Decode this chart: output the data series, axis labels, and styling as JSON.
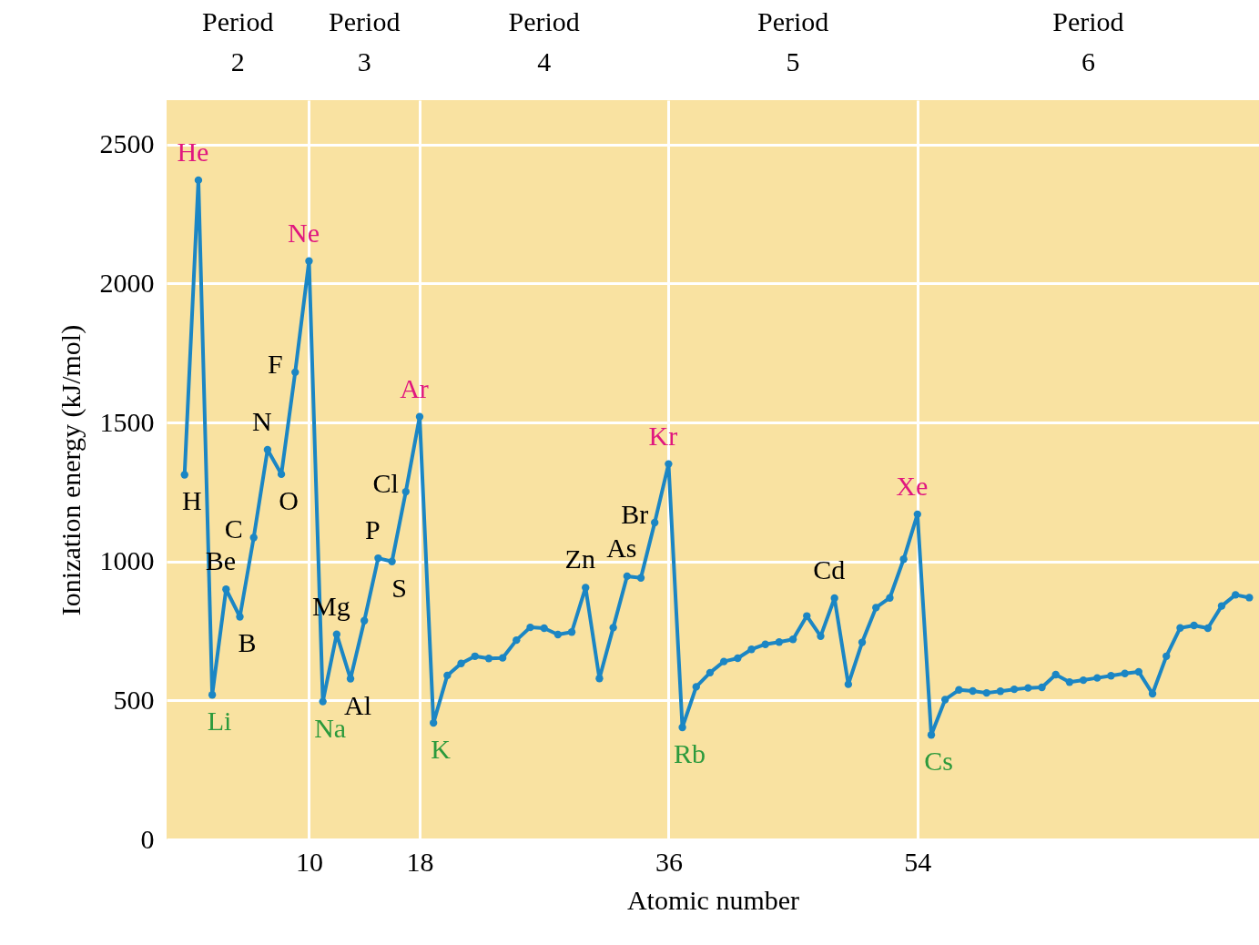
{
  "chart_data": {
    "type": "line",
    "xlabel": "Atomic number",
    "ylabel": "Ionization energy (kJ/mol)",
    "x": [
      1,
      2,
      3,
      4,
      5,
      6,
      7,
      8,
      9,
      10,
      11,
      12,
      13,
      14,
      15,
      16,
      17,
      18,
      19,
      20,
      21,
      22,
      23,
      24,
      25,
      26,
      27,
      28,
      29,
      30,
      31,
      32,
      33,
      34,
      35,
      36,
      37,
      38,
      39,
      40,
      41,
      42,
      43,
      44,
      45,
      46,
      47,
      48,
      49,
      50,
      51,
      52,
      53,
      54,
      55,
      56,
      57,
      58,
      59,
      60,
      61,
      62,
      63,
      64,
      65,
      66,
      67,
      68,
      69,
      70,
      71,
      72,
      73,
      74,
      75,
      76,
      77,
      78
    ],
    "series": [
      {
        "color": "#1b86c4",
        "values": [
          1312,
          2372,
          520,
          900,
          801,
          1086,
          1402,
          1314,
          1681,
          2081,
          496,
          738,
          578,
          787,
          1012,
          1000,
          1251,
          1521,
          419,
          590,
          633,
          659,
          651,
          653,
          717,
          763,
          760,
          737,
          746,
          906,
          579,
          762,
          947,
          941,
          1140,
          1351,
          403,
          549,
          600,
          640,
          652,
          684,
          702,
          710,
          720,
          804,
          731,
          868,
          558,
          709,
          834,
          869,
          1008,
          1170,
          376,
          503,
          538,
          534,
          527,
          533,
          540,
          545,
          547,
          593,
          566,
          573,
          581,
          589,
          597,
          603,
          524,
          659,
          761,
          770,
          760,
          840,
          880,
          870
        ]
      }
    ],
    "xlim": [
      -0.3,
      78.7
    ],
    "ylim": [
      0,
      2660
    ],
    "xticks": [
      10,
      18,
      36,
      54
    ],
    "yticks": [
      0,
      500,
      1000,
      1500,
      2000,
      2500
    ],
    "grid": true,
    "marker": "circle",
    "line_style": "solid",
    "annotations": [
      "Period 2",
      "Period 3",
      "Period 4",
      "Period 5",
      "Period 6",
      {
        "text": "H",
        "x": 1,
        "y": 1312
      },
      {
        "text": "He",
        "x": 2,
        "y": 2372
      },
      {
        "text": "Li",
        "x": 3,
        "y": 520
      },
      {
        "text": "Be",
        "x": 4,
        "y": 900
      },
      {
        "text": "B",
        "x": 5,
        "y": 801
      },
      {
        "text": "C",
        "x": 6,
        "y": 1086
      },
      {
        "text": "N",
        "x": 7,
        "y": 1402
      },
      {
        "text": "O",
        "x": 8,
        "y": 1314
      },
      {
        "text": "F",
        "x": 9,
        "y": 1681
      },
      {
        "text": "Ne",
        "x": 10,
        "y": 2081
      },
      {
        "text": "Na",
        "x": 11,
        "y": 496
      },
      {
        "text": "Mg",
        "x": 12,
        "y": 738
      },
      {
        "text": "Al",
        "x": 13,
        "y": 578
      },
      {
        "text": "P",
        "x": 15,
        "y": 1012
      },
      {
        "text": "S",
        "x": 16,
        "y": 1000
      },
      {
        "text": "Cl",
        "x": 17,
        "y": 1251
      },
      {
        "text": "Ar",
        "x": 18,
        "y": 1521
      },
      {
        "text": "K",
        "x": 19,
        "y": 419
      },
      {
        "text": "Zn",
        "x": 30,
        "y": 906
      },
      {
        "text": "As",
        "x": 33,
        "y": 947
      },
      {
        "text": "Br",
        "x": 35,
        "y": 1140
      },
      {
        "text": "Kr",
        "x": 36,
        "y": 1351
      },
      {
        "text": "Rb",
        "x": 37,
        "y": 403
      },
      {
        "text": "Cd",
        "x": 48,
        "y": 868
      },
      {
        "text": "Xe",
        "x": 54,
        "y": 1170
      },
      {
        "text": "Cs",
        "x": 55,
        "y": 376
      }
    ]
  }
}
